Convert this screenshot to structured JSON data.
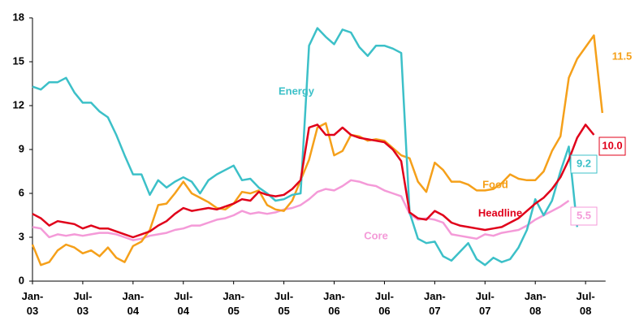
{
  "chart_data": {
    "type": "line",
    "categories": [
      "Jan-03",
      null,
      null,
      null,
      null,
      null,
      "Jul-03",
      null,
      null,
      null,
      null,
      null,
      "Jan-04",
      null,
      null,
      null,
      null,
      null,
      "Jul-04",
      null,
      null,
      null,
      null,
      null,
      "Jan-05",
      null,
      null,
      null,
      null,
      null,
      "Jul-05",
      null,
      null,
      null,
      null,
      null,
      "Jan-06",
      null,
      null,
      null,
      null,
      null,
      "Jul-06",
      null,
      null,
      null,
      null,
      null,
      "Jan-07",
      null,
      null,
      null,
      null,
      null,
      "Jul-07",
      null,
      null,
      null,
      null,
      null,
      "Jan-08",
      null,
      null,
      null,
      null,
      null,
      "Jul-08",
      null,
      null
    ],
    "ylim": [
      0,
      18
    ],
    "yticks": [
      0,
      3,
      6,
      9,
      12,
      15,
      18
    ],
    "series": [
      {
        "name": "Energy",
        "color": "#3cc0c8",
        "values": [
          13.3,
          13.1,
          13.6,
          13.6,
          13.9,
          12.9,
          12.2,
          12.2,
          11.6,
          11.2,
          10.0,
          8.6,
          7.3,
          7.3,
          5.9,
          6.9,
          6.4,
          6.8,
          7.1,
          6.8,
          6.0,
          6.9,
          7.3,
          7.6,
          7.9,
          6.9,
          7.0,
          6.4,
          6.0,
          5.5,
          5.6,
          5.9,
          6.0,
          16.1,
          17.3,
          16.7,
          16.2,
          17.2,
          17.0,
          16.0,
          15.4,
          16.1,
          16.1,
          15.9,
          15.6,
          4.7,
          2.9,
          2.6,
          2.7,
          1.7,
          1.4,
          2.0,
          2.6,
          1.5,
          1.1,
          1.6,
          1.3,
          1.5,
          2.3,
          3.5,
          5.6,
          4.5,
          5.5,
          7.5,
          9.2,
          3.7,
          null,
          null,
          null
        ]
      },
      {
        "name": "Food",
        "color": "#f5a01a",
        "values": [
          2.5,
          1.1,
          1.3,
          2.1,
          2.5,
          2.3,
          1.9,
          2.1,
          1.7,
          2.3,
          1.6,
          1.3,
          2.4,
          2.7,
          3.5,
          5.2,
          5.3,
          6.0,
          6.8,
          6.0,
          5.7,
          5.4,
          5.0,
          4.9,
          5.3,
          6.1,
          6.0,
          6.2,
          5.2,
          4.9,
          4.8,
          5.5,
          6.9,
          8.3,
          10.5,
          10.8,
          8.6,
          8.9,
          10.0,
          9.9,
          9.6,
          9.7,
          9.6,
          9.1,
          8.6,
          8.4,
          6.8,
          6.1,
          8.1,
          7.6,
          6.8,
          6.8,
          6.6,
          6.2,
          6.2,
          6.3,
          6.7,
          7.3,
          7.0,
          6.9,
          6.9,
          7.5,
          8.9,
          9.9,
          13.9,
          15.2,
          16.0,
          16.8,
          11.5
        ]
      },
      {
        "name": "Headline",
        "color": "#e0001a",
        "values": [
          4.6,
          4.3,
          3.8,
          4.1,
          4.0,
          3.9,
          3.6,
          3.8,
          3.6,
          3.6,
          3.4,
          3.2,
          3.0,
          3.2,
          3.4,
          3.8,
          4.1,
          4.6,
          5.0,
          4.8,
          4.9,
          5.0,
          4.9,
          5.1,
          5.3,
          5.6,
          5.5,
          6.1,
          5.9,
          5.8,
          5.9,
          6.3,
          6.9,
          10.5,
          10.7,
          10.0,
          10.0,
          10.5,
          10.0,
          9.8,
          9.7,
          9.6,
          9.5,
          9.0,
          8.2,
          4.7,
          4.3,
          4.2,
          4.8,
          4.5,
          4.0,
          3.8,
          3.7,
          3.6,
          3.5,
          3.6,
          3.7,
          4.0,
          4.3,
          4.8,
          5.3,
          5.7,
          6.3,
          7.1,
          8.3,
          9.8,
          10.7,
          10.0,
          null
        ],
        "value_labels": [
          null,
          null,
          null,
          null,
          null,
          null,
          null,
          null,
          null,
          null,
          null,
          null,
          null,
          null,
          null,
          null,
          null,
          null,
          null,
          null,
          null,
          null,
          null,
          null,
          null,
          null,
          null,
          null,
          null,
          null,
          null,
          null,
          null,
          null,
          null,
          null,
          null,
          null,
          null,
          null,
          null,
          null,
          null,
          null,
          null,
          null,
          null,
          null,
          null,
          null,
          null,
          null,
          null,
          null,
          null,
          null,
          null,
          null,
          null,
          null,
          null,
          null,
          null,
          null,
          null,
          null,
          null,
          "10.0",
          null
        ]
      },
      {
        "name": "Core",
        "color": "#f49ad8",
        "values": [
          3.7,
          3.6,
          3.0,
          3.2,
          3.1,
          3.2,
          3.1,
          3.2,
          3.3,
          3.3,
          3.2,
          3.0,
          2.8,
          2.9,
          3.1,
          3.2,
          3.3,
          3.5,
          3.6,
          3.8,
          3.8,
          4.0,
          4.2,
          4.3,
          4.5,
          4.8,
          4.6,
          4.7,
          4.6,
          4.7,
          4.9,
          5.0,
          5.2,
          5.6,
          6.1,
          6.3,
          6.2,
          6.5,
          6.9,
          6.8,
          6.6,
          6.5,
          6.2,
          6.0,
          5.8,
          4.6,
          4.2,
          4.3,
          4.2,
          4.0,
          3.2,
          3.1,
          3.0,
          2.9,
          3.2,
          3.1,
          3.3,
          3.4,
          3.5,
          3.8,
          4.2,
          4.5,
          4.8,
          5.1,
          5.5,
          null,
          null,
          null,
          null
        ]
      }
    ]
  }
}
